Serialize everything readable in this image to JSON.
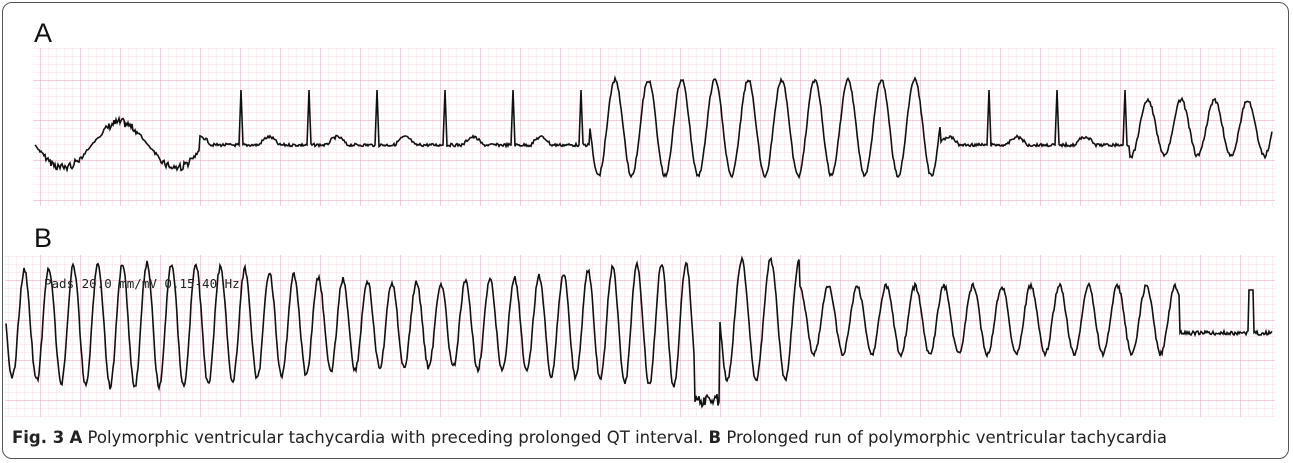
{
  "figure": {
    "panels": [
      {
        "label": "A"
      },
      {
        "label": "B",
        "annotation": "Pads 20.0 mm/mV 0.15-40 Hz"
      }
    ],
    "caption": {
      "number": "Fig. 3",
      "parts": [
        {
          "label": "A",
          "text": "Polymorphic ventricular tachycardia with preceding prolonged QT interval."
        },
        {
          "label": "B",
          "text": "Prolonged run of polymorphic ventricular tachycardia"
        }
      ]
    }
  }
}
